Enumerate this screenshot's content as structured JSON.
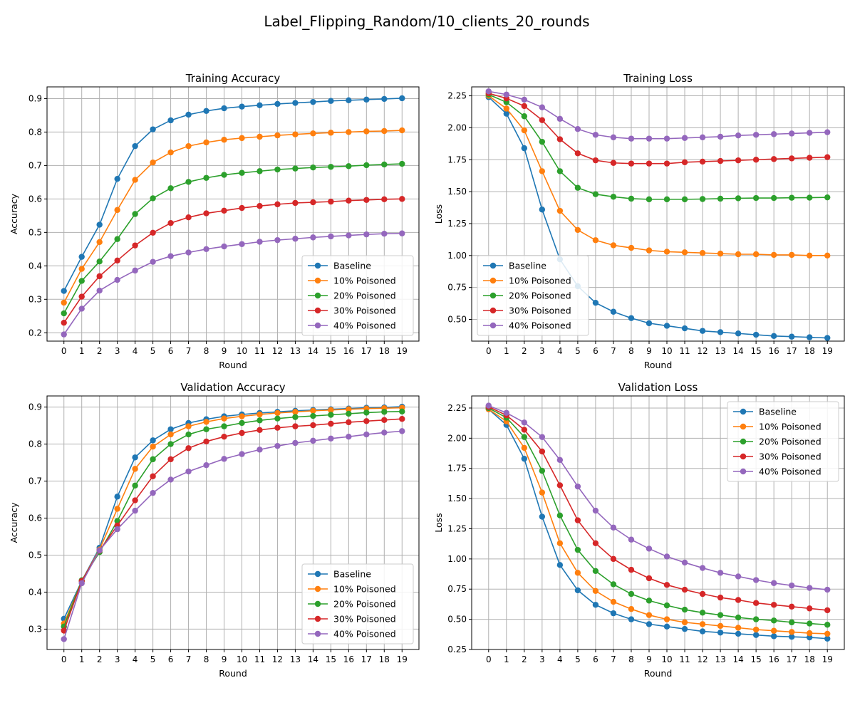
{
  "figure": {
    "suptitle": "Label_Flipping_Random/10_clients_20_rounds"
  },
  "chart_data": [
    {
      "type": "line",
      "title": "Training Accuracy",
      "xlabel": "Round",
      "ylabel": "Accuracy",
      "x": [
        0,
        1,
        2,
        3,
        4,
        5,
        6,
        7,
        8,
        9,
        10,
        11,
        12,
        13,
        14,
        15,
        16,
        17,
        18,
        19
      ],
      "xlim": [
        -0.95,
        19.95
      ],
      "ylim": [
        0.175,
        0.935
      ],
      "yticks": [
        0.2,
        0.3,
        0.4,
        0.5,
        0.6,
        0.7,
        0.8,
        0.9
      ],
      "ytick_labels": [
        "0.2",
        "0.3",
        "0.4",
        "0.5",
        "0.6",
        "0.7",
        "0.8",
        "0.9"
      ],
      "grid": true,
      "legend_position": "lower-right",
      "series": [
        {
          "name": "Baseline",
          "color": "#1f77b4",
          "values": [
            0.325,
            0.427,
            0.523,
            0.66,
            0.758,
            0.808,
            0.835,
            0.852,
            0.863,
            0.871,
            0.876,
            0.88,
            0.884,
            0.887,
            0.89,
            0.893,
            0.895,
            0.897,
            0.899,
            0.901
          ]
        },
        {
          "name": "10% Poisoned",
          "color": "#ff7f0e",
          "values": [
            0.29,
            0.391,
            0.471,
            0.567,
            0.657,
            0.709,
            0.739,
            0.758,
            0.769,
            0.777,
            0.782,
            0.786,
            0.79,
            0.793,
            0.796,
            0.798,
            0.8,
            0.802,
            0.803,
            0.805
          ]
        },
        {
          "name": "20% Poisoned",
          "color": "#2ca02c",
          "values": [
            0.258,
            0.355,
            0.413,
            0.48,
            0.555,
            0.602,
            0.632,
            0.651,
            0.663,
            0.672,
            0.678,
            0.683,
            0.688,
            0.691,
            0.694,
            0.696,
            0.698,
            0.701,
            0.703,
            0.705
          ]
        },
        {
          "name": "30% Poisoned",
          "color": "#d62728",
          "values": [
            0.23,
            0.308,
            0.369,
            0.416,
            0.461,
            0.499,
            0.528,
            0.545,
            0.557,
            0.565,
            0.573,
            0.579,
            0.584,
            0.588,
            0.59,
            0.592,
            0.595,
            0.597,
            0.599,
            0.6
          ]
        },
        {
          "name": "40% Poisoned",
          "color": "#9467bd",
          "values": [
            0.195,
            0.272,
            0.326,
            0.358,
            0.386,
            0.412,
            0.429,
            0.44,
            0.45,
            0.458,
            0.465,
            0.472,
            0.477,
            0.481,
            0.485,
            0.488,
            0.491,
            0.494,
            0.496,
            0.497
          ]
        }
      ]
    },
    {
      "type": "line",
      "title": "Training Loss",
      "xlabel": "Round",
      "ylabel": "Loss",
      "x": [
        0,
        1,
        2,
        3,
        4,
        5,
        6,
        7,
        8,
        9,
        10,
        11,
        12,
        13,
        14,
        15,
        16,
        17,
        18,
        19
      ],
      "xlim": [
        -0.95,
        19.95
      ],
      "ylim": [
        0.33,
        2.32
      ],
      "yticks": [
        0.5,
        0.75,
        1.0,
        1.25,
        1.5,
        1.75,
        2.0,
        2.25
      ],
      "ytick_labels": [
        "0.50",
        "0.75",
        "1.00",
        "1.25",
        "1.50",
        "1.75",
        "2.00",
        "2.25"
      ],
      "grid": true,
      "legend_position": "lower-left",
      "series": [
        {
          "name": "Baseline",
          "color": "#1f77b4",
          "values": [
            2.24,
            2.11,
            1.84,
            1.36,
            0.97,
            0.76,
            0.63,
            0.56,
            0.51,
            0.47,
            0.45,
            0.43,
            0.41,
            0.4,
            0.39,
            0.38,
            0.37,
            0.365,
            0.36,
            0.355
          ]
        },
        {
          "name": "10% Poisoned",
          "color": "#ff7f0e",
          "values": [
            2.25,
            2.15,
            1.98,
            1.66,
            1.35,
            1.2,
            1.12,
            1.08,
            1.06,
            1.04,
            1.03,
            1.025,
            1.02,
            1.015,
            1.01,
            1.01,
            1.005,
            1.005,
            1.0,
            1.0
          ]
        },
        {
          "name": "20% Poisoned",
          "color": "#2ca02c",
          "values": [
            2.26,
            2.2,
            2.09,
            1.89,
            1.66,
            1.53,
            1.48,
            1.46,
            1.445,
            1.44,
            1.44,
            1.44,
            1.442,
            1.445,
            1.448,
            1.45,
            1.45,
            1.452,
            1.453,
            1.455
          ]
        },
        {
          "name": "30% Poisoned",
          "color": "#d62728",
          "values": [
            2.27,
            2.23,
            2.17,
            2.06,
            1.91,
            1.8,
            1.745,
            1.725,
            1.72,
            1.72,
            1.72,
            1.73,
            1.735,
            1.74,
            1.745,
            1.75,
            1.755,
            1.76,
            1.765,
            1.77
          ]
        },
        {
          "name": "40% Poisoned",
          "color": "#9467bd",
          "values": [
            2.285,
            2.26,
            2.22,
            2.16,
            2.07,
            1.99,
            1.945,
            1.925,
            1.915,
            1.915,
            1.915,
            1.92,
            1.925,
            1.93,
            1.94,
            1.945,
            1.95,
            1.955,
            1.96,
            1.965
          ]
        }
      ]
    },
    {
      "type": "line",
      "title": "Validation Accuracy",
      "xlabel": "Round",
      "ylabel": "Accuracy",
      "x": [
        0,
        1,
        2,
        3,
        4,
        5,
        6,
        7,
        8,
        9,
        10,
        11,
        12,
        13,
        14,
        15,
        16,
        17,
        18,
        19
      ],
      "xlim": [
        -0.95,
        19.95
      ],
      "ylim": [
        0.245,
        0.93
      ],
      "yticks": [
        0.3,
        0.4,
        0.5,
        0.6,
        0.7,
        0.8,
        0.9
      ],
      "ytick_labels": [
        "0.3",
        "0.4",
        "0.5",
        "0.6",
        "0.7",
        "0.8",
        "0.9"
      ],
      "grid": true,
      "legend_position": "lower-right",
      "series": [
        {
          "name": "Baseline",
          "color": "#1f77b4",
          "values": [
            0.328,
            0.43,
            0.52,
            0.658,
            0.764,
            0.81,
            0.84,
            0.857,
            0.867,
            0.875,
            0.88,
            0.884,
            0.887,
            0.89,
            0.892,
            0.894,
            0.896,
            0.898,
            0.899,
            0.901
          ]
        },
        {
          "name": "10% Poisoned",
          "color": "#ff7f0e",
          "values": [
            0.315,
            0.43,
            0.515,
            0.625,
            0.733,
            0.793,
            0.826,
            0.848,
            0.86,
            0.869,
            0.875,
            0.88,
            0.884,
            0.887,
            0.89,
            0.892,
            0.894,
            0.896,
            0.897,
            0.898
          ]
        },
        {
          "name": "20% Poisoned",
          "color": "#2ca02c",
          "values": [
            0.307,
            0.432,
            0.508,
            0.592,
            0.688,
            0.759,
            0.8,
            0.826,
            0.84,
            0.848,
            0.857,
            0.864,
            0.869,
            0.873,
            0.876,
            0.879,
            0.882,
            0.885,
            0.887,
            0.888
          ]
        },
        {
          "name": "30% Poisoned",
          "color": "#d62728",
          "values": [
            0.296,
            0.43,
            0.512,
            0.58,
            0.648,
            0.713,
            0.759,
            0.789,
            0.807,
            0.82,
            0.83,
            0.838,
            0.844,
            0.848,
            0.851,
            0.855,
            0.859,
            0.862,
            0.865,
            0.868
          ]
        },
        {
          "name": "40% Poisoned",
          "color": "#9467bd",
          "values": [
            0.273,
            0.424,
            0.513,
            0.57,
            0.62,
            0.668,
            0.704,
            0.726,
            0.743,
            0.76,
            0.773,
            0.785,
            0.795,
            0.803,
            0.809,
            0.815,
            0.82,
            0.826,
            0.831,
            0.835
          ]
        }
      ]
    },
    {
      "type": "line",
      "title": "Validation Loss",
      "xlabel": "Round",
      "ylabel": "Loss",
      "x": [
        0,
        1,
        2,
        3,
        4,
        5,
        6,
        7,
        8,
        9,
        10,
        11,
        12,
        13,
        14,
        15,
        16,
        17,
        18,
        19
      ],
      "xlim": [
        -0.95,
        19.95
      ],
      "ylim": [
        0.25,
        2.35
      ],
      "yticks": [
        0.25,
        0.5,
        0.75,
        1.0,
        1.25,
        1.5,
        1.75,
        2.0,
        2.25
      ],
      "ytick_labels": [
        "0.25",
        "0.50",
        "0.75",
        "1.00",
        "1.25",
        "1.50",
        "1.75",
        "2.00",
        "2.25"
      ],
      "grid": true,
      "legend_position": "upper-right",
      "series": [
        {
          "name": "Baseline",
          "color": "#1f77b4",
          "values": [
            2.24,
            2.11,
            1.83,
            1.35,
            0.95,
            0.74,
            0.62,
            0.55,
            0.5,
            0.46,
            0.44,
            0.42,
            0.4,
            0.39,
            0.38,
            0.37,
            0.36,
            0.355,
            0.35,
            0.34
          ]
        },
        {
          "name": "10% Poisoned",
          "color": "#ff7f0e",
          "values": [
            2.24,
            2.14,
            1.92,
            1.55,
            1.13,
            0.885,
            0.735,
            0.645,
            0.585,
            0.535,
            0.5,
            0.475,
            0.46,
            0.445,
            0.43,
            0.415,
            0.405,
            0.395,
            0.385,
            0.38
          ]
        },
        {
          "name": "20% Poisoned",
          "color": "#2ca02c",
          "values": [
            2.25,
            2.17,
            2.01,
            1.73,
            1.36,
            1.075,
            0.9,
            0.79,
            0.71,
            0.655,
            0.615,
            0.58,
            0.555,
            0.535,
            0.515,
            0.5,
            0.49,
            0.475,
            0.465,
            0.455
          ]
        },
        {
          "name": "30% Poisoned",
          "color": "#d62728",
          "values": [
            2.26,
            2.19,
            2.07,
            1.89,
            1.61,
            1.32,
            1.13,
            1.0,
            0.91,
            0.84,
            0.785,
            0.745,
            0.71,
            0.68,
            0.66,
            0.635,
            0.62,
            0.605,
            0.59,
            0.575
          ]
        },
        {
          "name": "40% Poisoned",
          "color": "#9467bd",
          "values": [
            2.27,
            2.21,
            2.13,
            2.01,
            1.82,
            1.6,
            1.4,
            1.26,
            1.16,
            1.085,
            1.02,
            0.97,
            0.925,
            0.885,
            0.855,
            0.825,
            0.8,
            0.78,
            0.76,
            0.745
          ]
        }
      ]
    }
  ]
}
